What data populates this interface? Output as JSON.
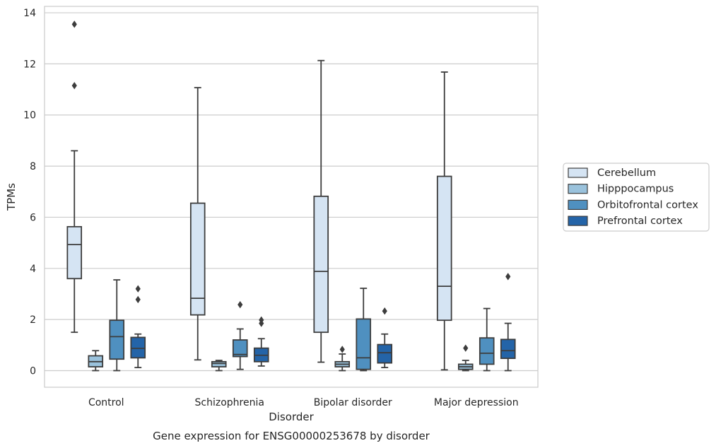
{
  "chart_data": {
    "type": "boxplot",
    "title": "Gene expression for ENSG00000253678 by disorder",
    "xlabel": "Disorder",
    "ylabel": "TPMs",
    "categories": [
      "Control",
      "Schizophrenia",
      "Bipolar disorder",
      "Major depression"
    ],
    "ylim": [
      -0.65,
      14.25
    ],
    "yticks": [
      0,
      2,
      4,
      6,
      8,
      10,
      12,
      14
    ],
    "grid": true,
    "legend_position": "right",
    "series": [
      {
        "name": "Cerebellum",
        "color": "#d5e4f3",
        "boxes": [
          {
            "whislo": 1.5,
            "q1": 3.6,
            "med": 4.93,
            "q3": 5.63,
            "whishi": 8.6,
            "fliers": [
              11.15,
              13.55
            ]
          },
          {
            "whislo": 0.42,
            "q1": 2.18,
            "med": 2.83,
            "q3": 6.55,
            "whishi": 11.07,
            "fliers": []
          },
          {
            "whislo": 0.33,
            "q1": 1.5,
            "med": 3.88,
            "q3": 6.82,
            "whishi": 12.13,
            "fliers": []
          },
          {
            "whislo": 0.03,
            "q1": 1.97,
            "med": 3.3,
            "q3": 7.6,
            "whishi": 11.68,
            "fliers": []
          }
        ]
      },
      {
        "name": "Hipppocampus",
        "color": "#9ac2dc",
        "boxes": [
          {
            "whislo": 0.0,
            "q1": 0.15,
            "med": 0.35,
            "q3": 0.58,
            "whishi": 0.78,
            "fliers": []
          },
          {
            "whislo": 0.0,
            "q1": 0.15,
            "med": 0.28,
            "q3": 0.35,
            "whishi": 0.4,
            "fliers": []
          },
          {
            "whislo": 0.0,
            "q1": 0.15,
            "med": 0.25,
            "q3": 0.35,
            "whishi": 0.65,
            "fliers": [
              0.83
            ]
          },
          {
            "whislo": 0.0,
            "q1": 0.05,
            "med": 0.15,
            "q3": 0.25,
            "whishi": 0.4,
            "fliers": [
              0.88
            ]
          }
        ]
      },
      {
        "name": "Orbitofrontal cortex",
        "color": "#4f90c0",
        "boxes": [
          {
            "whislo": 0.0,
            "q1": 0.45,
            "med": 1.33,
            "q3": 1.97,
            "whishi": 3.55,
            "fliers": []
          },
          {
            "whislo": 0.05,
            "q1": 0.55,
            "med": 0.63,
            "q3": 1.2,
            "whishi": 1.63,
            "fliers": [
              2.58
            ]
          },
          {
            "whislo": 0.0,
            "q1": 0.05,
            "med": 0.5,
            "q3": 2.02,
            "whishi": 3.22,
            "fliers": []
          },
          {
            "whislo": 0.0,
            "q1": 0.25,
            "med": 0.68,
            "q3": 1.28,
            "whishi": 2.43,
            "fliers": []
          }
        ]
      },
      {
        "name": "Prefrontal cortex",
        "color": "#2464a8",
        "boxes": [
          {
            "whislo": 0.12,
            "q1": 0.5,
            "med": 0.87,
            "q3": 1.3,
            "whishi": 1.43,
            "fliers": [
              2.78,
              3.2
            ]
          },
          {
            "whislo": 0.18,
            "q1": 0.35,
            "med": 0.6,
            "q3": 0.88,
            "whishi": 1.25,
            "fliers": [
              1.85,
              1.98
            ]
          },
          {
            "whislo": 0.12,
            "q1": 0.3,
            "med": 0.7,
            "q3": 1.02,
            "whishi": 1.43,
            "fliers": [
              2.33
            ]
          },
          {
            "whislo": 0.0,
            "q1": 0.48,
            "med": 0.78,
            "q3": 1.22,
            "whishi": 1.85,
            "fliers": [
              3.68
            ]
          }
        ]
      }
    ]
  }
}
